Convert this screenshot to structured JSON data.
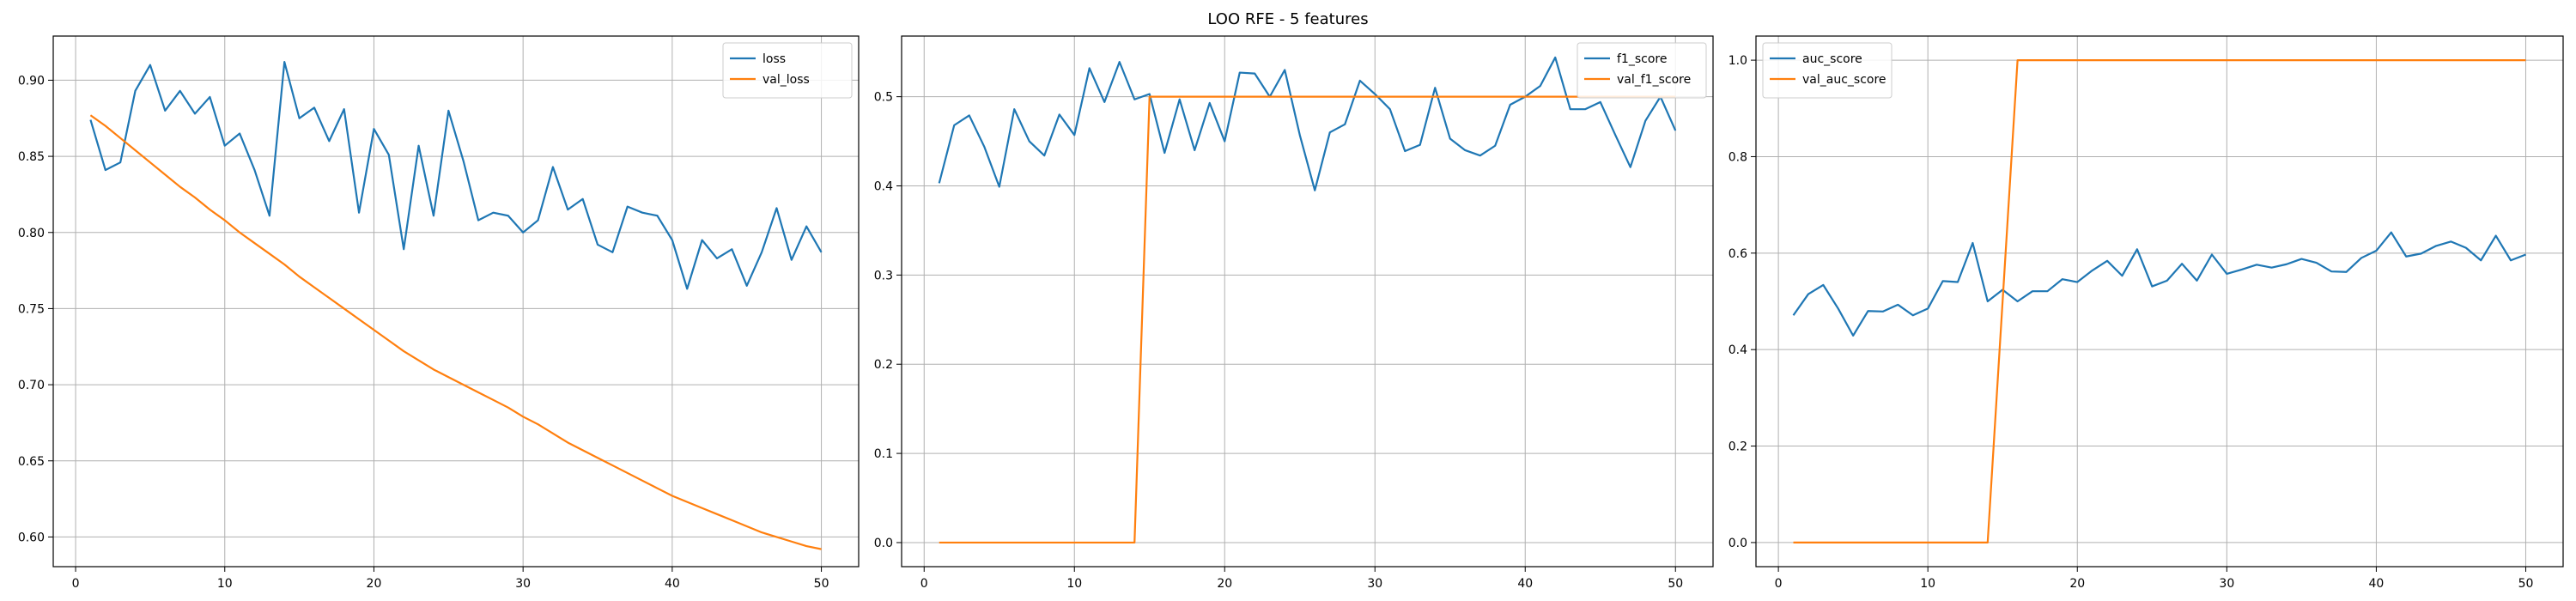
{
  "figure": {
    "title": "LOO RFE - 5 features"
  },
  "colors": {
    "series1": "#1f77b4",
    "series2": "#ff7f0e",
    "grid": "#b0b0b0",
    "axis": "#000000"
  },
  "chart_data": [
    {
      "type": "line",
      "xlim": [
        -1.5,
        52.5
      ],
      "ylim": [
        0.5805,
        0.929
      ],
      "xticks": [
        0,
        10,
        20,
        30,
        40,
        50
      ],
      "xtick_labels": [
        "0",
        "10",
        "20",
        "30",
        "40",
        "50"
      ],
      "yticks": [
        0.6,
        0.65,
        0.7,
        0.75,
        0.8,
        0.85,
        0.9
      ],
      "ytick_labels": [
        "0.60",
        "0.65",
        "0.70",
        "0.75",
        "0.80",
        "0.85",
        "0.90"
      ],
      "grid": true,
      "legend": "top-right",
      "x": [
        1,
        2,
        3,
        4,
        5,
        6,
        7,
        8,
        9,
        10,
        11,
        12,
        13,
        14,
        15,
        16,
        17,
        18,
        19,
        20,
        21,
        22,
        23,
        24,
        25,
        26,
        27,
        28,
        29,
        30,
        31,
        32,
        33,
        34,
        35,
        36,
        37,
        38,
        39,
        40,
        41,
        42,
        43,
        44,
        45,
        46,
        47,
        48,
        49,
        50
      ],
      "series": [
        {
          "name": "loss",
          "values": [
            0.874,
            0.841,
            0.846,
            0.893,
            0.91,
            0.88,
            0.893,
            0.878,
            0.889,
            0.857,
            0.865,
            0.841,
            0.811,
            0.912,
            0.875,
            0.882,
            0.86,
            0.881,
            0.813,
            0.868,
            0.851,
            0.789,
            0.857,
            0.811,
            0.88,
            0.847,
            0.808,
            0.813,
            0.811,
            0.8,
            0.808,
            0.843,
            0.815,
            0.822,
            0.792,
            0.787,
            0.817,
            0.813,
            0.811,
            0.795,
            0.763,
            0.795,
            0.783,
            0.789,
            0.765,
            0.787,
            0.816,
            0.782,
            0.804,
            0.787
          ]
        },
        {
          "name": "val_loss",
          "values": [
            0.877,
            0.87,
            0.862,
            0.854,
            0.846,
            0.838,
            0.83,
            0.823,
            0.815,
            0.808,
            0.8,
            0.793,
            0.786,
            0.779,
            0.771,
            0.764,
            0.757,
            0.75,
            0.743,
            0.736,
            0.729,
            0.722,
            0.716,
            0.71,
            0.705,
            0.7,
            0.695,
            0.69,
            0.685,
            0.679,
            0.674,
            0.668,
            0.662,
            0.657,
            0.652,
            0.647,
            0.642,
            0.637,
            0.632,
            0.627,
            0.623,
            0.619,
            0.615,
            0.611,
            0.607,
            0.603,
            0.6,
            0.597,
            0.594,
            0.592
          ]
        }
      ]
    },
    {
      "type": "line",
      "xlim": [
        -1.5,
        52.5
      ],
      "ylim": [
        -0.027,
        0.568
      ],
      "xticks": [
        0,
        10,
        20,
        30,
        40,
        50
      ],
      "xtick_labels": [
        "0",
        "10",
        "20",
        "30",
        "40",
        "50"
      ],
      "yticks": [
        0.0,
        0.1,
        0.2,
        0.3,
        0.4,
        0.5
      ],
      "ytick_labels": [
        "0.0",
        "0.1",
        "0.2",
        "0.3",
        "0.4",
        "0.5"
      ],
      "grid": true,
      "legend": "top-right",
      "x": [
        1,
        2,
        3,
        4,
        5,
        6,
        7,
        8,
        9,
        10,
        11,
        12,
        13,
        14,
        15,
        16,
        17,
        18,
        19,
        20,
        21,
        22,
        23,
        24,
        25,
        26,
        27,
        28,
        29,
        30,
        31,
        32,
        33,
        34,
        35,
        36,
        37,
        38,
        39,
        40,
        41,
        42,
        43,
        44,
        45,
        46,
        47,
        48,
        49,
        50
      ],
      "series": [
        {
          "name": "f1_score",
          "values": [
            0.403,
            0.468,
            0.479,
            0.444,
            0.399,
            0.486,
            0.45,
            0.434,
            0.48,
            0.457,
            0.532,
            0.494,
            0.539,
            0.497,
            0.503,
            0.437,
            0.497,
            0.44,
            0.493,
            0.45,
            0.527,
            0.526,
            0.5,
            0.53,
            0.457,
            0.395,
            0.46,
            0.469,
            0.518,
            0.503,
            0.486,
            0.439,
            0.446,
            0.51,
            0.453,
            0.44,
            0.434,
            0.445,
            0.491,
            0.5,
            0.512,
            0.544,
            0.486,
            0.486,
            0.494,
            0.457,
            0.421,
            0.473,
            0.5,
            0.462
          ]
        },
        {
          "name": "val_f1_score",
          "values": [
            0,
            0,
            0,
            0,
            0,
            0,
            0,
            0,
            0,
            0,
            0,
            0,
            0,
            0,
            0.5,
            0.5,
            0.5,
            0.5,
            0.5,
            0.5,
            0.5,
            0.5,
            0.5,
            0.5,
            0.5,
            0.5,
            0.5,
            0.5,
            0.5,
            0.5,
            0.5,
            0.5,
            0.5,
            0.5,
            0.5,
            0.5,
            0.5,
            0.5,
            0.5,
            0.5,
            0.5,
            0.5,
            0.5,
            0.5,
            0.5,
            0.5,
            0.5,
            0.5,
            0.5,
            0.5
          ]
        }
      ]
    },
    {
      "type": "line",
      "xlim": [
        -1.5,
        52.5
      ],
      "ylim": [
        -0.05,
        1.05
      ],
      "xticks": [
        0,
        10,
        20,
        30,
        40,
        50
      ],
      "xtick_labels": [
        "0",
        "10",
        "20",
        "30",
        "40",
        "50"
      ],
      "yticks": [
        0.0,
        0.2,
        0.4,
        0.6,
        0.8,
        1.0
      ],
      "ytick_labels": [
        "0.0",
        "0.2",
        "0.4",
        "0.6",
        "0.8",
        "1.0"
      ],
      "grid": true,
      "legend": "top-left",
      "x": [
        1,
        2,
        3,
        4,
        5,
        6,
        7,
        8,
        9,
        10,
        11,
        12,
        13,
        14,
        15,
        16,
        17,
        18,
        19,
        20,
        21,
        22,
        23,
        24,
        25,
        26,
        27,
        28,
        29,
        30,
        31,
        32,
        33,
        34,
        35,
        36,
        37,
        38,
        39,
        40,
        41,
        42,
        43,
        44,
        45,
        46,
        47,
        48,
        49,
        50
      ],
      "series": [
        {
          "name": "auc_score",
          "values": [
            0.471,
            0.515,
            0.534,
            0.485,
            0.429,
            0.48,
            0.479,
            0.493,
            0.471,
            0.485,
            0.542,
            0.54,
            0.621,
            0.5,
            0.524,
            0.5,
            0.521,
            0.521,
            0.546,
            0.54,
            0.564,
            0.584,
            0.553,
            0.608,
            0.531,
            0.543,
            0.578,
            0.543,
            0.597,
            0.557,
            0.566,
            0.576,
            0.57,
            0.577,
            0.588,
            0.58,
            0.562,
            0.561,
            0.59,
            0.605,
            0.643,
            0.593,
            0.599,
            0.615,
            0.624,
            0.611,
            0.585,
            0.636,
            0.585,
            0.597
          ]
        },
        {
          "name": "val_auc_score",
          "values": [
            0,
            0,
            0,
            0,
            0,
            0,
            0,
            0,
            0,
            0,
            0,
            0,
            0,
            0,
            0.5,
            1,
            1,
            1,
            1,
            1,
            1,
            1,
            1,
            1,
            1,
            1,
            1,
            1,
            1,
            1,
            1,
            1,
            1,
            1,
            1,
            1,
            1,
            1,
            1,
            1,
            1,
            1,
            1,
            1,
            1,
            1,
            1,
            1,
            1,
            1
          ]
        }
      ]
    }
  ]
}
